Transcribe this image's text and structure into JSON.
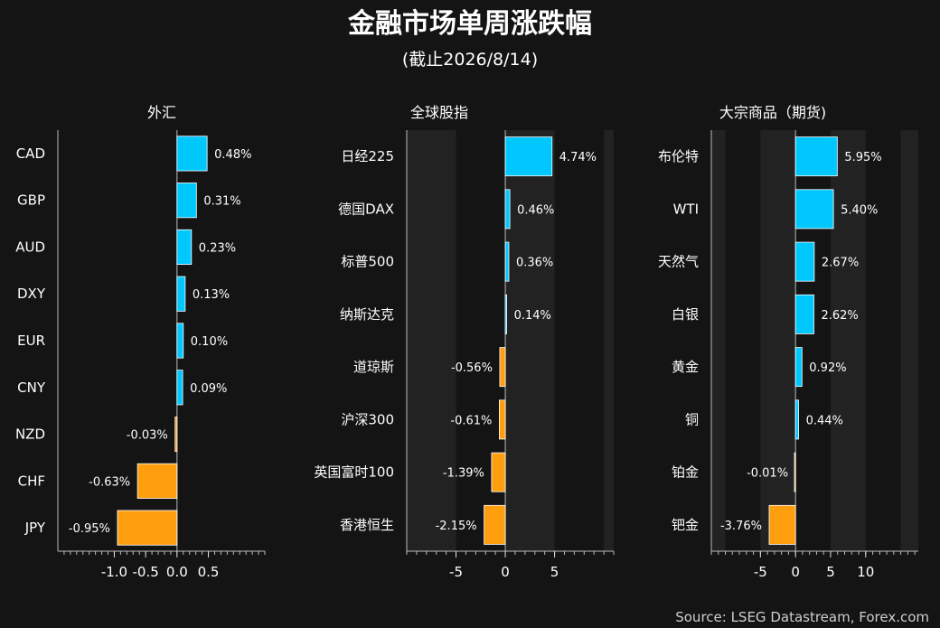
{
  "header": {
    "title": "金融市场单周涨跌幅",
    "subtitle": "(截止2026/8/14)"
  },
  "source": "Source: LSEG Datastream, Forex.com",
  "colors": {
    "positive": "#00c8ff",
    "negative": "#ff9e0f",
    "background": "#141414",
    "band": "#222222"
  },
  "chart_data": [
    {
      "type": "bar",
      "orientation": "horizontal",
      "title": "外汇",
      "categories": [
        "CAD",
        "GBP",
        "AUD",
        "DXY",
        "EUR",
        "CNY",
        "NZD",
        "CHF",
        "JPY"
      ],
      "values": [
        0.48,
        0.31,
        0.23,
        0.13,
        0.1,
        0.09,
        -0.03,
        -0.63,
        -0.95
      ],
      "labels": [
        "0.48%",
        "0.31%",
        "0.23%",
        "0.13%",
        "0.10%",
        "0.09%",
        "-0.03%",
        "-0.63%",
        "-0.95%"
      ],
      "xlim": [
        -1.9,
        1.4
      ],
      "ticks": [
        -1.0,
        -0.5,
        0.0,
        0.5
      ],
      "tick_labels": [
        "-1.0",
        "-0.5",
        "0.0",
        "0.5"
      ],
      "minor_step": 0.1,
      "bands": false
    },
    {
      "type": "bar",
      "orientation": "horizontal",
      "title": "全球股指",
      "categories": [
        "日经225",
        "德国DAX",
        "标普500",
        "纳斯达克",
        "道琼斯",
        "沪深300",
        "英国富时100",
        "香港恒生"
      ],
      "values": [
        4.74,
        0.46,
        0.36,
        0.14,
        -0.56,
        -0.61,
        -1.39,
        -2.15
      ],
      "labels": [
        "4.74%",
        "0.46%",
        "0.36%",
        "0.14%",
        "-0.56%",
        "-0.61%",
        "-1.39%",
        "-2.15%"
      ],
      "xlim": [
        -10,
        11
      ],
      "ticks": [
        -5,
        0,
        5
      ],
      "tick_labels": [
        "-5",
        "0",
        "5"
      ],
      "minor_step": 1,
      "bands": true
    },
    {
      "type": "bar",
      "orientation": "horizontal",
      "title": "大宗商品（期货)",
      "categories": [
        "布伦特",
        "WTI",
        "天然气",
        "白银",
        "黄金",
        "铜",
        "铂金",
        "钯金"
      ],
      "values": [
        5.95,
        5.4,
        2.67,
        2.62,
        0.92,
        0.44,
        -0.01,
        -3.76
      ],
      "labels": [
        "5.95%",
        "5.40%",
        "2.67%",
        "2.62%",
        "0.92%",
        "0.44%",
        "-0.01%",
        "-3.76%"
      ],
      "xlim": [
        -12,
        17.5
      ],
      "ticks": [
        -5,
        0,
        5,
        10
      ],
      "tick_labels": [
        "-5",
        "0",
        "5",
        "10"
      ],
      "minor_step": 1,
      "bands": true
    }
  ]
}
